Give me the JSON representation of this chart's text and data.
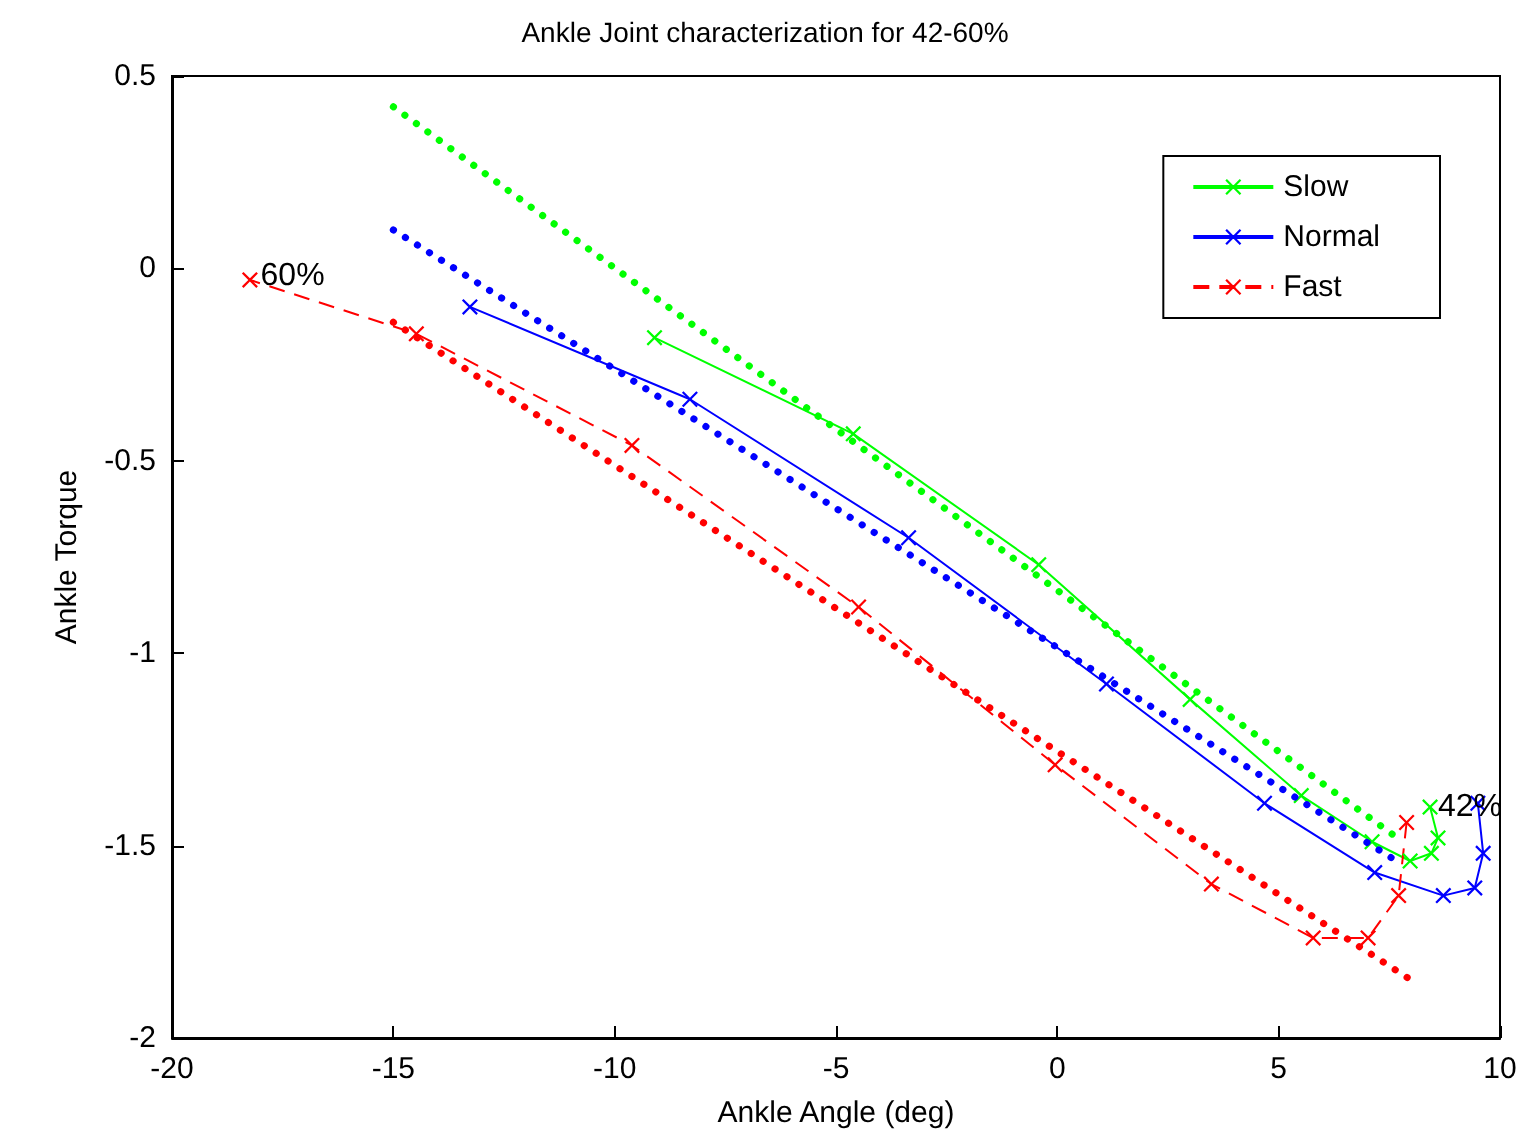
{
  "chart_data": {
    "type": "line",
    "title": "Ankle Joint characterization for 42-60%",
    "xlabel": "Ankle Angle (deg)",
    "ylabel": "Ankle Torque",
    "xlim": [
      -20,
      10
    ],
    "xticks": [
      -20,
      -15,
      -10,
      -5,
      0,
      5,
      10
    ],
    "ylim": [
      -2,
      0.5
    ],
    "yticks": [
      -2,
      -1.5,
      -1,
      -0.5,
      0,
      0.5
    ],
    "grid": false,
    "legend": "top right",
    "marker": "cross",
    "series": [
      {
        "name": "Slow",
        "color": "#00ff00",
        "line_style": "solid",
        "x": [
          8.42,
          8.6,
          8.45,
          7.97,
          7.11,
          5.51,
          3.0,
          -0.42,
          -4.61,
          -9.1
        ],
        "values": [
          -1.4,
          -1.48,
          -1.52,
          -1.54,
          -1.49,
          -1.37,
          -1.12,
          -0.77,
          -0.43,
          -0.18
        ]
      },
      {
        "name": "Normal",
        "color": "#0000ff",
        "line_style": "solid",
        "x": [
          9.5,
          9.62,
          9.43,
          8.72,
          7.17,
          4.68,
          1.11,
          -3.36,
          -8.3,
          -13.27
        ],
        "values": [
          -1.39,
          -1.52,
          -1.61,
          -1.63,
          -1.57,
          -1.39,
          -1.08,
          -0.7,
          -0.34,
          -0.1
        ]
      },
      {
        "name": "Fast",
        "color": "#ff0000",
        "line_style": "dashed",
        "x": [
          7.89,
          7.71,
          7.02,
          5.78,
          3.48,
          -0.05,
          -4.49,
          -9.61,
          -14.48,
          -18.24
        ],
        "values": [
          -1.44,
          -1.63,
          -1.74,
          -1.74,
          -1.6,
          -1.29,
          -0.88,
          -0.46,
          -0.17,
          -0.03
        ]
      },
      {
        "type": "line",
        "color": "#00ff00",
        "line_style": "dotted",
        "marker": "none",
        "x": [
          -15,
          7.8
        ],
        "values": [
          0.42,
          -1.49
        ]
      },
      {
        "type": "line",
        "color": "#0000ff",
        "line_style": "dotted",
        "marker": "none",
        "x": [
          -15,
          7.8
        ],
        "values": [
          0.1,
          -1.55
        ]
      },
      {
        "type": "line",
        "color": "#ff0000",
        "line_style": "dotted",
        "marker": "none",
        "x": [
          -15,
          8
        ],
        "values": [
          -0.14,
          -1.85
        ]
      }
    ],
    "annotations": [
      {
        "text": "60%",
        "x": -18,
        "y": -0.02
      },
      {
        "text": "42%",
        "x": 8.6,
        "y": -1.4
      }
    ]
  }
}
